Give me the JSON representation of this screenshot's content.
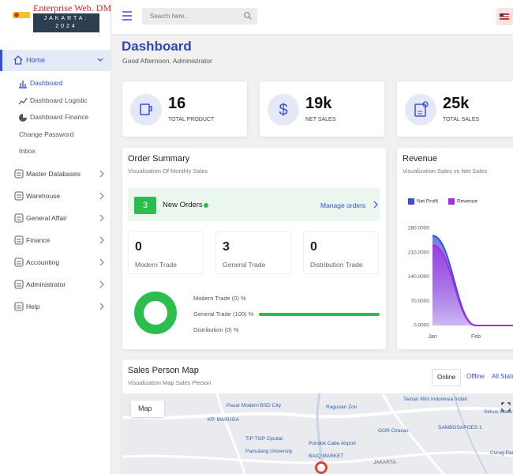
{
  "header": {
    "brand_title": "Enterprise Web. DMO",
    "brand_subtitle": "JAKARTA: 2024",
    "search_placeholder": "Search here..."
  },
  "sidebar": {
    "home": "Home",
    "home_items": [
      "Dashboard",
      "Dashboard Logistic",
      "Dashboard Finance",
      "Change Password",
      "Inbox"
    ],
    "menu": [
      "Master Databases",
      "Warehouse",
      "General Affair",
      "Finance",
      "Accounting",
      "Administrator",
      "Help"
    ]
  },
  "page": {
    "title": "Dashboard",
    "greeting": "Good Afternoon, Administrator"
  },
  "stats": [
    {
      "value": 16,
      "label": "TOTAL PRODUCT"
    },
    {
      "value": "19k",
      "label": "NET SALES"
    },
    {
      "value": "25k",
      "label": "TOTAL SALES"
    }
  ],
  "order_summary": {
    "title": "Order Summary",
    "subtitle": "Visualization Of Monthly Sales",
    "new_orders_count": 3,
    "new_orders_label": "New Orders",
    "manage_link": "Manage orders",
    "trades": [
      {
        "value": 0,
        "label": "Modern Trade"
      },
      {
        "value": 3,
        "label": "General Trade"
      },
      {
        "value": 0,
        "label": "Distribution Trade"
      }
    ],
    "legend": [
      "Modern Trade (0) %",
      "General Trade (100) %",
      "Distribution (0) %"
    ]
  },
  "revenue": {
    "title": "Revenue",
    "subtitle": "Visualization Sales vs Net Sales",
    "chart_data": {
      "type": "area",
      "categories": [
        "Jan",
        "Feb",
        null
      ],
      "series": [
        {
          "name": "Net Profit",
          "color": "#3a4fd6",
          "values": [
            259,
            0,
            0
          ]
        },
        {
          "name": "Revenue",
          "color": "#a52de0",
          "values": [
            232,
            0,
            0
          ]
        }
      ],
      "ylim": [
        0,
        280
      ],
      "yticks": [
        {
          "value": 0,
          "label": "0.0000"
        },
        {
          "value": 70,
          "label": "70.0000"
        },
        {
          "value": 140,
          "label": "140.0000"
        },
        {
          "value": 210,
          "label": "210.0000"
        },
        {
          "value": 280,
          "label": "280.0000"
        }
      ]
    }
  },
  "map": {
    "title": "Sales Person Map",
    "subtitle": "Visualization Map Sales Person",
    "tabs": [
      "Online",
      "Offline",
      "All Status"
    ],
    "map_type": "Map",
    "places": [
      "Pasar Modern BSD City",
      "Ragunan Zoo",
      "Taman Mini Indonesia Indah",
      "TIP TOP Ciputat",
      "GOR Ciracas",
      "Pondok Cabe Airport",
      "Pamulang University",
      "BAIQ MARKET",
      "Sirkus Waterplay",
      "Curug Park",
      "SAMBOSAPOES 1",
      "KP. MARUGA",
      "JAKARTA"
    ]
  }
}
